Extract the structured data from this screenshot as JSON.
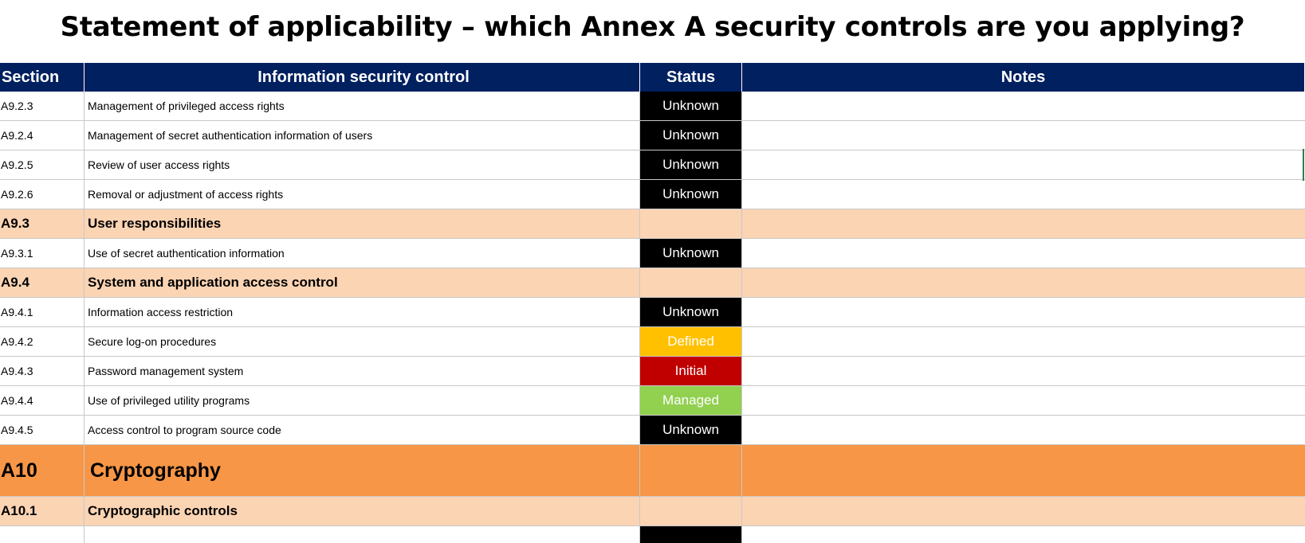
{
  "title": "Statement of applicability – which Annex A security controls are you applying?",
  "headers": {
    "section": "Section",
    "control": "Information security control",
    "status": "Status",
    "notes": "Notes"
  },
  "rows": [
    {
      "section": "A9.2.3",
      "control": "Management of privileged access rights",
      "status": "Unknown"
    },
    {
      "section": "A9.2.4",
      "control": "Management of secret authentication information of users",
      "status": "Unknown"
    },
    {
      "section": "A9.2.5",
      "control": "Review of user access rights",
      "status": "Unknown"
    },
    {
      "section": "A9.2.6",
      "control": "Removal or adjustment of access rights",
      "status": "Unknown"
    },
    {
      "section": "A9.3",
      "control": "User responsibilities",
      "status": ""
    },
    {
      "section": "A9.3.1",
      "control": "Use of secret authentication information",
      "status": "Unknown"
    },
    {
      "section": "A9.4",
      "control": "System and application access control",
      "status": ""
    },
    {
      "section": "A9.4.1",
      "control": "Information access restriction",
      "status": "Unknown"
    },
    {
      "section": "A9.4.2",
      "control": "Secure log-on procedures",
      "status": "Defined"
    },
    {
      "section": "A9.4.3",
      "control": "Password management system",
      "status": "Initial"
    },
    {
      "section": "A9.4.4",
      "control": "Use of privileged utility programs",
      "status": "Managed"
    },
    {
      "section": "A9.4.5",
      "control": "Access control to program source code",
      "status": "Unknown"
    },
    {
      "section": "A10",
      "control": "Cryptography",
      "status": ""
    },
    {
      "section": "A10.1",
      "control": "Cryptographic controls",
      "status": ""
    },
    {
      "section": "",
      "control": "",
      "status": ""
    }
  ],
  "colors": {
    "header_bg": "#002060",
    "subsection_bg": "#fbd4b4",
    "section_bg": "#f79646",
    "status_unknown": "#000000",
    "status_defined": "#ffc000",
    "status_initial": "#c00000",
    "status_managed": "#92d050"
  }
}
